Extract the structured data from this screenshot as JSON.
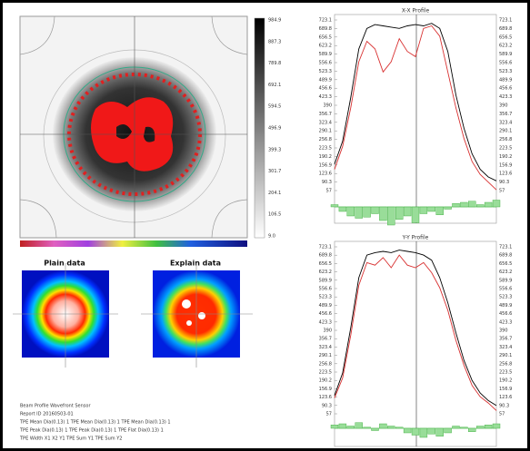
{
  "heatmap": {
    "colorbar_ticks": [
      "984.9",
      "887.3",
      "789.8",
      "692.1",
      "594.5",
      "496.9",
      "399.3",
      "301.7",
      "204.1",
      "106.5",
      "9.0"
    ]
  },
  "thumbnails": [
    {
      "title": "Plain data"
    },
    {
      "title": "Explain data"
    }
  ],
  "footer_lines": [
    "Beam Profile Wavefront Sensor",
    "Report ID 20160503-01",
    "TPE Mean Dia(0.13) 1   TPE Mean Dia(0.13) 1   TPE Mean Dia(0.13) 1",
    "TPE Peak Dia(0.13) 1   TPE Peak Dia(0.13) 1   TPE Flat Dia(0.13) 1",
    "TPE Width   X1 X2 Y1   TPE Sum   Y1   TPE Sum   Y2"
  ],
  "profiles": [
    {
      "title": "X-X Profile",
      "ylim": [
        57.0,
        723.1
      ],
      "yticks": [
        723.1,
        689.8,
        656.5,
        623.2,
        589.9,
        556.6,
        523.3,
        489.9,
        456.6,
        423.3,
        390.0,
        356.7,
        323.4,
        290.1,
        256.8,
        223.5,
        190.2,
        156.9,
        123.6,
        90.3,
        57.0
      ],
      "series": [
        {
          "color": "#000000",
          "values": [
            160,
            250,
            420,
            610,
            690,
            705,
            700,
            695,
            690,
            700,
            705,
            700,
            710,
            690,
            600,
            430,
            300,
            200,
            140,
            110,
            95
          ]
        },
        {
          "color": "#d83030",
          "values": [
            140,
            230,
            380,
            560,
            640,
            610,
            520,
            560,
            650,
            600,
            580,
            690,
            700,
            660,
            520,
            380,
            260,
            170,
            120,
            90,
            60
          ]
        }
      ],
      "residuals": [
        10,
        -20,
        -40,
        -50,
        -45,
        -30,
        -60,
        -80,
        -55,
        -40,
        -70,
        -30,
        -20,
        -35,
        -10,
        15,
        20,
        25,
        10,
        20,
        30
      ]
    },
    {
      "title": "Y-Y Profile",
      "ylim": [
        57.0,
        723.1
      ],
      "yticks": [
        723.1,
        689.8,
        656.5,
        623.2,
        589.9,
        556.6,
        523.3,
        489.9,
        456.6,
        423.3,
        390.0,
        356.7,
        323.4,
        290.1,
        256.8,
        223.5,
        190.2,
        156.9,
        123.6,
        90.3,
        57.0
      ],
      "series": [
        {
          "color": "#000000",
          "values": [
            130,
            220,
            400,
            600,
            690,
            700,
            705,
            700,
            710,
            705,
            700,
            690,
            670,
            600,
            500,
            380,
            270,
            190,
            140,
            110,
            90
          ]
        },
        {
          "color": "#d83030",
          "values": [
            120,
            200,
            370,
            570,
            660,
            650,
            680,
            640,
            690,
            650,
            640,
            660,
            620,
            560,
            470,
            350,
            250,
            170,
            125,
            100,
            70
          ]
        }
      ],
      "residuals": [
        15,
        20,
        10,
        25,
        5,
        -10,
        20,
        10,
        5,
        -20,
        -30,
        -40,
        -25,
        -35,
        -20,
        10,
        5,
        -15,
        10,
        15,
        20
      ]
    }
  ]
}
